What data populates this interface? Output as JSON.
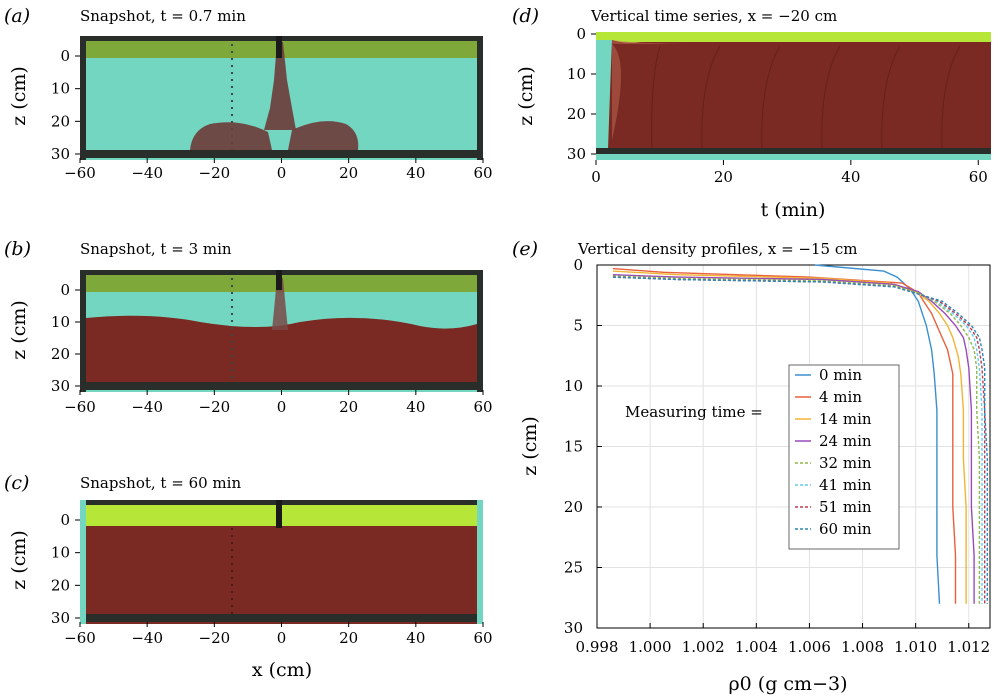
{
  "panels": {
    "a": {
      "label": "(a)",
      "title": "Snapshot, t = 0.7 min"
    },
    "b": {
      "label": "(b)",
      "title": "Snapshot, t = 3 min"
    },
    "c": {
      "label": "(c)",
      "title": "Snapshot, t = 60 min"
    },
    "d": {
      "label": "(d)",
      "title": "Vertical time series, x = −20 cm",
      "xlabel": "t (min)"
    },
    "e": {
      "label": "(e)",
      "title": "Vertical density profiles, x = −15 cm",
      "xlabel": "ρ0 (g cm−3)",
      "ylabel": "z (cm)"
    }
  },
  "snap_ylabel": "z (cm)",
  "snap_xlabel": "x (cm)",
  "snap_xticks": [
    "−60",
    "−40",
    "−20",
    "0",
    "20",
    "40",
    "60"
  ],
  "snap_yticks": [
    "0",
    "10",
    "20",
    "30"
  ],
  "d_xticks": [
    "0",
    "20",
    "40",
    "60"
  ],
  "d_yticks": [
    "0",
    "10",
    "20",
    "30"
  ],
  "colors": {
    "water": "#73d6c0",
    "ambient": "#95e3d0",
    "dense": "#7a2a22",
    "top_layer": "#b5e638",
    "frame": "#2a2e2a"
  },
  "legend": {
    "prefix": "Measuring time =",
    "items": [
      "0 min",
      "4 min",
      "14 min",
      "24 min",
      "32 min",
      "41 min",
      "51 min",
      "60 min"
    ]
  },
  "chart_data": {
    "type": "line",
    "title": "Vertical density profiles, x = −15 cm",
    "xlabel": "ρ0 (g cm−3)",
    "ylabel": "z (cm)",
    "xlim": [
      0.998,
      1.0128
    ],
    "ylim": [
      30,
      0
    ],
    "xticks": [
      "0.998",
      "1.000",
      "1.002",
      "1.004",
      "1.006",
      "1.008",
      "1.010",
      "1.012"
    ],
    "yticks": [
      "0",
      "5",
      "10",
      "15",
      "20",
      "25",
      "30"
    ],
    "grid": true,
    "legend_position": "center",
    "series": [
      {
        "name": "0 min",
        "color": "#3a8fd0",
        "dash": "solid",
        "z": [
          0,
          0.5,
          1.0,
          2.0,
          3.0,
          5.0,
          7.0,
          9.0,
          12,
          16,
          20,
          24,
          28
        ],
        "rho": [
          1.0062,
          1.0088,
          1.0093,
          1.0098,
          1.0101,
          1.0104,
          1.0106,
          1.0107,
          1.0108,
          1.0108,
          1.0108,
          1.0108,
          1.0109
        ]
      },
      {
        "name": "4 min",
        "color": "#e8603c",
        "dash": "solid",
        "z": [
          0.3,
          0.6,
          1.0,
          1.5,
          2.3,
          3.0,
          4.0,
          5.0,
          6.0,
          7.0,
          8.0,
          9.0,
          12,
          16,
          20,
          24,
          28
        ],
        "rho": [
          0.9986,
          1.0005,
          1.006,
          1.0095,
          1.0101,
          1.0103,
          1.0106,
          1.0108,
          1.011,
          1.0112,
          1.0113,
          1.0114,
          1.0114,
          1.0114,
          1.0114,
          1.0115,
          1.0115
        ]
      },
      {
        "name": "14 min",
        "color": "#f2b434",
        "dash": "solid",
        "z": [
          0.5,
          0.8,
          1.1,
          1.5,
          2.2,
          3.0,
          4.0,
          5.0,
          6.0,
          7.5,
          9.0,
          12,
          16,
          20,
          24,
          28
        ],
        "rho": [
          0.9986,
          1.001,
          1.0065,
          1.009,
          1.01,
          1.0105,
          1.0109,
          1.0112,
          1.0114,
          1.0116,
          1.0117,
          1.0118,
          1.0118,
          1.0119,
          1.0119,
          1.0119
        ]
      },
      {
        "name": "24 min",
        "color": "#9a4bb8",
        "dash": "solid",
        "z": [
          0.8,
          1.0,
          1.2,
          1.6,
          2.2,
          3.0,
          4.0,
          5.0,
          6.0,
          7.0,
          8.5,
          12,
          16,
          20,
          24,
          28
        ],
        "rho": [
          0.9986,
          1.001,
          1.0065,
          1.0092,
          1.0101,
          1.0106,
          1.0111,
          1.0115,
          1.0118,
          1.0119,
          1.012,
          1.0121,
          1.0121,
          1.0121,
          1.0122,
          1.0122
        ]
      },
      {
        "name": "32 min",
        "color": "#8ab84a",
        "dash": "dashed",
        "z": [
          0.9,
          1.1,
          1.3,
          1.7,
          2.3,
          3.0,
          4.0,
          5.0,
          6.0,
          7.0,
          8.5,
          12,
          16,
          20,
          24,
          28
        ],
        "rho": [
          0.9986,
          1.001,
          1.0065,
          1.0092,
          1.0101,
          1.0107,
          1.0113,
          1.0117,
          1.012,
          1.0122,
          1.0123,
          1.0123,
          1.0124,
          1.0124,
          1.0124,
          1.0124
        ]
      },
      {
        "name": "41 min",
        "color": "#62cbee",
        "dash": "dashed",
        "z": [
          1.0,
          1.2,
          1.4,
          1.8,
          2.4,
          3.0,
          4.0,
          5.0,
          6.0,
          7.0,
          8.5,
          12,
          16,
          20,
          24,
          28
        ],
        "rho": [
          0.9986,
          1.001,
          1.0065,
          1.0092,
          1.0101,
          1.0108,
          1.0114,
          1.0119,
          1.0122,
          1.0123,
          1.0124,
          1.0125,
          1.0125,
          1.0125,
          1.0125,
          1.0125
        ]
      },
      {
        "name": "51 min",
        "color": "#b83a54",
        "dash": "dashed",
        "z": [
          1.0,
          1.2,
          1.4,
          1.8,
          2.4,
          3.0,
          4.0,
          5.0,
          6.0,
          7.0,
          8.5,
          12,
          16,
          20,
          24,
          28
        ],
        "rho": [
          0.9986,
          1.001,
          1.0065,
          1.0092,
          1.0101,
          1.0109,
          1.0115,
          1.012,
          1.0123,
          1.0124,
          1.0125,
          1.0126,
          1.0126,
          1.0126,
          1.0126,
          1.0126
        ]
      },
      {
        "name": "60 min",
        "color": "#2e86b5",
        "dash": "dashed",
        "z": [
          1.0,
          1.2,
          1.4,
          1.8,
          2.4,
          3.0,
          4.0,
          5.0,
          6.0,
          7.0,
          8.5,
          12,
          16,
          20,
          24,
          28
        ],
        "rho": [
          0.9986,
          1.001,
          1.0065,
          1.0092,
          1.0101,
          1.011,
          1.0116,
          1.0121,
          1.0124,
          1.0125,
          1.0126,
          1.0126,
          1.0127,
          1.0127,
          1.0127,
          1.0127
        ]
      }
    ]
  }
}
